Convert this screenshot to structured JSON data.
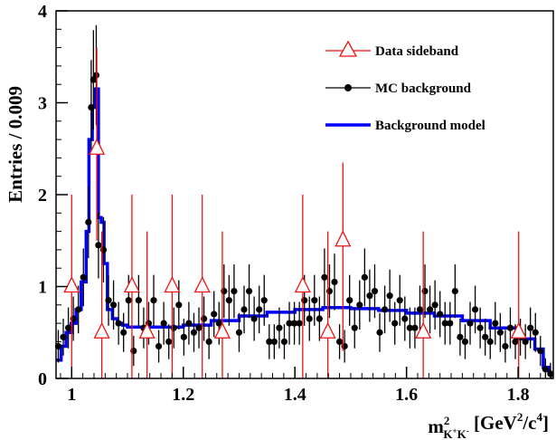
{
  "chart_data": {
    "type": "scatter",
    "ylabel": "Entries / 0.009",
    "xlabel": {
      "prefix": "m",
      "superscript": "2",
      "subscript_base": "K",
      "subscript_sup1": "+",
      "subscript_mid": "K",
      "subscript_sup2": "-",
      "unit_open": " [GeV",
      "unit_sup1": "2",
      "unit_mid": "/c",
      "unit_sup2": "4",
      "unit_close": "]"
    },
    "xlim": [
      0.972,
      1.863
    ],
    "ylim": [
      0,
      4
    ],
    "x_ticks": [
      {
        "value": 1.0,
        "label": "1"
      },
      {
        "value": 1.2,
        "label": "1.2"
      },
      {
        "value": 1.4,
        "label": "1.4"
      },
      {
        "value": 1.6,
        "label": "1.6"
      },
      {
        "value": 1.8,
        "label": "1.8"
      }
    ],
    "y_ticks": [
      {
        "value": 0,
        "label": "0"
      },
      {
        "value": 1,
        "label": "1"
      },
      {
        "value": 2,
        "label": "2"
      },
      {
        "value": 3,
        "label": "3"
      },
      {
        "value": 4,
        "label": "4"
      }
    ],
    "legend_position": "top-right",
    "legend": [
      {
        "label": "Data sideband",
        "marker": "triangle",
        "color": "#ee1111"
      },
      {
        "label": "MC background",
        "marker": "circle",
        "color": "#000000"
      },
      {
        "label": "Background model",
        "marker": "line",
        "color": "#0000ff"
      }
    ],
    "colors": {
      "data": "#ee1111",
      "mc": "#000000",
      "model": "#0000ff"
    },
    "series": [
      {
        "id": "data",
        "style": "triangle",
        "points": [
          {
            "x": 1.0,
            "y": 1.0,
            "lo": 0.0,
            "hi": 2.0
          },
          {
            "x": 1.045,
            "y": 2.5,
            "lo": 1.5,
            "hi": 3.6
          },
          {
            "x": 1.054,
            "y": 0.5,
            "lo": 0.0,
            "hi": 1.6
          },
          {
            "x": 1.108,
            "y": 1.0,
            "lo": 0.0,
            "hi": 2.0
          },
          {
            "x": 1.135,
            "y": 0.5,
            "lo": 0.0,
            "hi": 1.6
          },
          {
            "x": 1.18,
            "y": 1.0,
            "lo": 0.0,
            "hi": 2.0
          },
          {
            "x": 1.234,
            "y": 1.0,
            "lo": 0.0,
            "hi": 2.0
          },
          {
            "x": 1.27,
            "y": 0.5,
            "lo": 0.0,
            "hi": 1.6
          },
          {
            "x": 1.414,
            "y": 1.0,
            "lo": 0.0,
            "hi": 2.0
          },
          {
            "x": 1.459,
            "y": 0.5,
            "lo": 0.0,
            "hi": 1.6
          },
          {
            "x": 1.486,
            "y": 1.5,
            "lo": 0.3,
            "hi": 2.35
          },
          {
            "x": 1.63,
            "y": 0.5,
            "lo": 0.0,
            "hi": 1.6
          },
          {
            "x": 1.801,
            "y": 0.5,
            "lo": 0.0,
            "hi": 1.6
          }
        ]
      },
      {
        "id": "mc",
        "style": "circle",
        "points": [
          {
            "x": 0.976,
            "y": 0.35
          },
          {
            "x": 0.985,
            "y": 0.45
          },
          {
            "x": 0.994,
            "y": 0.55
          },
          {
            "x": 1.003,
            "y": 0.65
          },
          {
            "x": 1.012,
            "y": 0.75
          },
          {
            "x": 1.021,
            "y": 1.1
          },
          {
            "x": 1.03,
            "y": 1.7
          },
          {
            "x": 1.035,
            "y": 2.95
          },
          {
            "x": 1.039,
            "y": 3.25
          },
          {
            "x": 1.044,
            "y": 3.3
          },
          {
            "x": 1.048,
            "y": 1.45
          },
          {
            "x": 1.057,
            "y": 1.4
          },
          {
            "x": 1.066,
            "y": 0.85
          },
          {
            "x": 1.075,
            "y": 0.8
          },
          {
            "x": 1.084,
            "y": 0.6
          },
          {
            "x": 1.093,
            "y": 0.5
          },
          {
            "x": 1.102,
            "y": 0.85
          },
          {
            "x": 1.111,
            "y": 0.3
          },
          {
            "x": 1.12,
            "y": 0.85
          },
          {
            "x": 1.129,
            "y": 0.55
          },
          {
            "x": 1.138,
            "y": 0.6
          },
          {
            "x": 1.147,
            "y": 0.85
          },
          {
            "x": 1.156,
            "y": 0.35
          },
          {
            "x": 1.165,
            "y": 0.6
          },
          {
            "x": 1.174,
            "y": 0.4
          },
          {
            "x": 1.183,
            "y": 0.55
          },
          {
            "x": 1.192,
            "y": 0.8
          },
          {
            "x": 1.201,
            "y": 0.45
          },
          {
            "x": 1.21,
            "y": 0.6
          },
          {
            "x": 1.219,
            "y": 0.5
          },
          {
            "x": 1.228,
            "y": 0.55
          },
          {
            "x": 1.237,
            "y": 0.65
          },
          {
            "x": 1.246,
            "y": 0.4
          },
          {
            "x": 1.255,
            "y": 0.7
          },
          {
            "x": 1.264,
            "y": 0.6
          },
          {
            "x": 1.273,
            "y": 0.95
          },
          {
            "x": 1.282,
            "y": 0.85
          },
          {
            "x": 1.291,
            "y": 0.95
          },
          {
            "x": 1.3,
            "y": 0.5
          },
          {
            "x": 1.309,
            "y": 0.75
          },
          {
            "x": 1.318,
            "y": 0.95
          },
          {
            "x": 1.327,
            "y": 0.65
          },
          {
            "x": 1.336,
            "y": 0.75
          },
          {
            "x": 1.345,
            "y": 0.85
          },
          {
            "x": 1.354,
            "y": 0.4
          },
          {
            "x": 1.363,
            "y": 0.4
          },
          {
            "x": 1.372,
            "y": 0.55
          },
          {
            "x": 1.381,
            "y": 0.4
          },
          {
            "x": 1.39,
            "y": 0.6
          },
          {
            "x": 1.399,
            "y": 0.6
          },
          {
            "x": 1.408,
            "y": 0.6
          },
          {
            "x": 1.417,
            "y": 0.85
          },
          {
            "x": 1.426,
            "y": 0.65
          },
          {
            "x": 1.435,
            "y": 0.85
          },
          {
            "x": 1.444,
            "y": 0.65
          },
          {
            "x": 1.453,
            "y": 1.1
          },
          {
            "x": 1.462,
            "y": 0.95
          },
          {
            "x": 1.471,
            "y": 1.05
          },
          {
            "x": 1.48,
            "y": 0.4
          },
          {
            "x": 1.489,
            "y": 0.35
          },
          {
            "x": 1.498,
            "y": 0.85
          },
          {
            "x": 1.507,
            "y": 0.55
          },
          {
            "x": 1.516,
            "y": 0.8
          },
          {
            "x": 1.525,
            "y": 1.1
          },
          {
            "x": 1.534,
            "y": 0.9
          },
          {
            "x": 1.543,
            "y": 0.95
          },
          {
            "x": 1.552,
            "y": 0.5
          },
          {
            "x": 1.561,
            "y": 0.75
          },
          {
            "x": 1.57,
            "y": 0.9
          },
          {
            "x": 1.579,
            "y": 0.6
          },
          {
            "x": 1.588,
            "y": 0.85
          },
          {
            "x": 1.597,
            "y": 0.65
          },
          {
            "x": 1.606,
            "y": 0.55
          },
          {
            "x": 1.615,
            "y": 0.55
          },
          {
            "x": 1.624,
            "y": 0.75
          },
          {
            "x": 1.633,
            "y": 0.95
          },
          {
            "x": 1.642,
            "y": 0.75
          },
          {
            "x": 1.651,
            "y": 0.8
          },
          {
            "x": 1.66,
            "y": 0.7
          },
          {
            "x": 1.669,
            "y": 0.6
          },
          {
            "x": 1.678,
            "y": 0.6
          },
          {
            "x": 1.687,
            "y": 0.95
          },
          {
            "x": 1.696,
            "y": 0.45
          },
          {
            "x": 1.705,
            "y": 0.4
          },
          {
            "x": 1.714,
            "y": 0.6
          },
          {
            "x": 1.723,
            "y": 0.75
          },
          {
            "x": 1.732,
            "y": 0.55
          },
          {
            "x": 1.741,
            "y": 0.45
          },
          {
            "x": 1.75,
            "y": 0.4
          },
          {
            "x": 1.759,
            "y": 0.6
          },
          {
            "x": 1.768,
            "y": 0.5
          },
          {
            "x": 1.777,
            "y": 0.35
          },
          {
            "x": 1.786,
            "y": 0.55
          },
          {
            "x": 1.795,
            "y": 0.4
          },
          {
            "x": 1.804,
            "y": 0.45
          },
          {
            "x": 1.813,
            "y": 0.4
          },
          {
            "x": 1.822,
            "y": 0.55
          },
          {
            "x": 1.831,
            "y": 0.5
          },
          {
            "x": 1.84,
            "y": 0.3
          },
          {
            "x": 1.849,
            "y": 0.1
          },
          {
            "x": 1.858,
            "y": 0.05
          }
        ]
      },
      {
        "id": "model",
        "style": "step",
        "points": [
          {
            "x": 0.972,
            "y": 0.2
          },
          {
            "x": 0.981,
            "y": 0.35
          },
          {
            "x": 0.99,
            "y": 0.5
          },
          {
            "x": 0.999,
            "y": 0.6
          },
          {
            "x": 1.008,
            "y": 0.75
          },
          {
            "x": 1.017,
            "y": 1.05
          },
          {
            "x": 1.026,
            "y": 1.6
          },
          {
            "x": 1.031,
            "y": 2.6
          },
          {
            "x": 1.037,
            "y": 2.95
          },
          {
            "x": 1.042,
            "y": 3.15
          },
          {
            "x": 1.048,
            "y": 1.75
          },
          {
            "x": 1.053,
            "y": 1.7
          },
          {
            "x": 1.058,
            "y": 1.25
          },
          {
            "x": 1.064,
            "y": 0.75
          },
          {
            "x": 1.073,
            "y": 0.65
          },
          {
            "x": 1.082,
            "y": 0.6
          },
          {
            "x": 1.091,
            "y": 0.58
          },
          {
            "x": 1.1,
            "y": 0.56
          },
          {
            "x": 1.15,
            "y": 0.56
          },
          {
            "x": 1.2,
            "y": 0.58
          },
          {
            "x": 1.25,
            "y": 0.63
          },
          {
            "x": 1.3,
            "y": 0.68
          },
          {
            "x": 1.35,
            "y": 0.72
          },
          {
            "x": 1.4,
            "y": 0.75
          },
          {
            "x": 1.45,
            "y": 0.77
          },
          {
            "x": 1.5,
            "y": 0.76
          },
          {
            "x": 1.55,
            "y": 0.74
          },
          {
            "x": 1.6,
            "y": 0.71
          },
          {
            "x": 1.65,
            "y": 0.68
          },
          {
            "x": 1.7,
            "y": 0.63
          },
          {
            "x": 1.75,
            "y": 0.55
          },
          {
            "x": 1.8,
            "y": 0.43
          },
          {
            "x": 1.83,
            "y": 0.32
          },
          {
            "x": 1.845,
            "y": 0.12
          },
          {
            "x": 1.855,
            "y": 0.07
          }
        ]
      }
    ]
  }
}
